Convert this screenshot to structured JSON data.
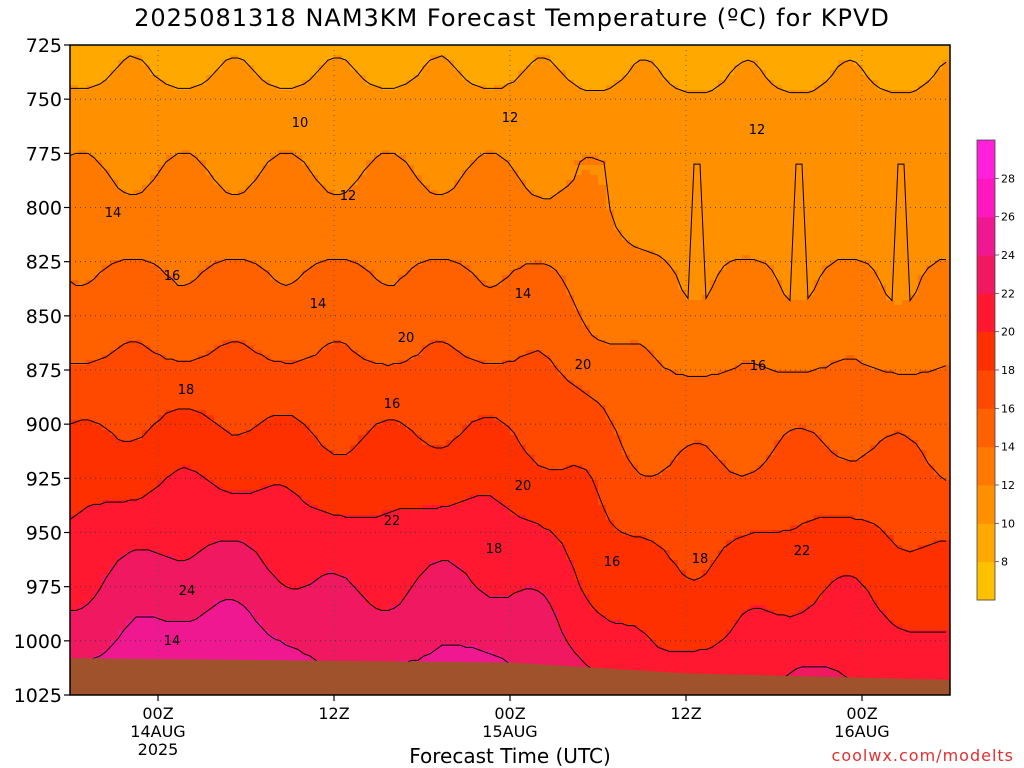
{
  "chart_data": {
    "type": "contour",
    "title": "2025081318 NAM3KM Forecast Temperature (ºC) for KPVD",
    "xlabel": "Forecast Time (UTC)",
    "credit": "coolwx.com/modelts",
    "y_axis": {
      "quantity": "pressure (hPa)",
      "ticks": [
        725,
        750,
        775,
        800,
        825,
        850,
        875,
        900,
        925,
        950,
        975,
        1000,
        1025
      ],
      "range": [
        725,
        1025
      ],
      "inverted": true
    },
    "x_axis": {
      "range_hours": [
        -6,
        54
      ],
      "ticks": [
        {
          "hour": 0,
          "lines": [
            "00Z",
            "14AUG",
            "2025"
          ]
        },
        {
          "hour": 12,
          "lines": [
            "12Z"
          ]
        },
        {
          "hour": 24,
          "lines": [
            "00Z",
            "15AUG"
          ]
        },
        {
          "hour": 36,
          "lines": [
            "12Z"
          ]
        },
        {
          "hour": 48,
          "lines": [
            "00Z",
            "16AUG"
          ]
        }
      ]
    },
    "grid": "dotted",
    "contour_interval": 2,
    "contour_labels": [
      "10",
      "12",
      "12",
      "12",
      "14",
      "16",
      "14",
      "14",
      "16",
      "20",
      "18",
      "16",
      "20",
      "20",
      "22",
      "18",
      "16",
      "18",
      "22",
      "24",
      "14"
    ],
    "colorbar": {
      "ticks": [
        "8",
        "10",
        "12",
        "14",
        "16",
        "18",
        "20",
        "22",
        "24",
        "26",
        "28"
      ],
      "colors": [
        "#FFC000",
        "#FFA800",
        "#FF9000",
        "#FF7800",
        "#FF6000",
        "#FF4800",
        "#FF3000",
        "#FF1830",
        "#F01860",
        "#F01890",
        "#FF18C0",
        "#FF20DC"
      ]
    },
    "ground_color": "#A0522D"
  }
}
